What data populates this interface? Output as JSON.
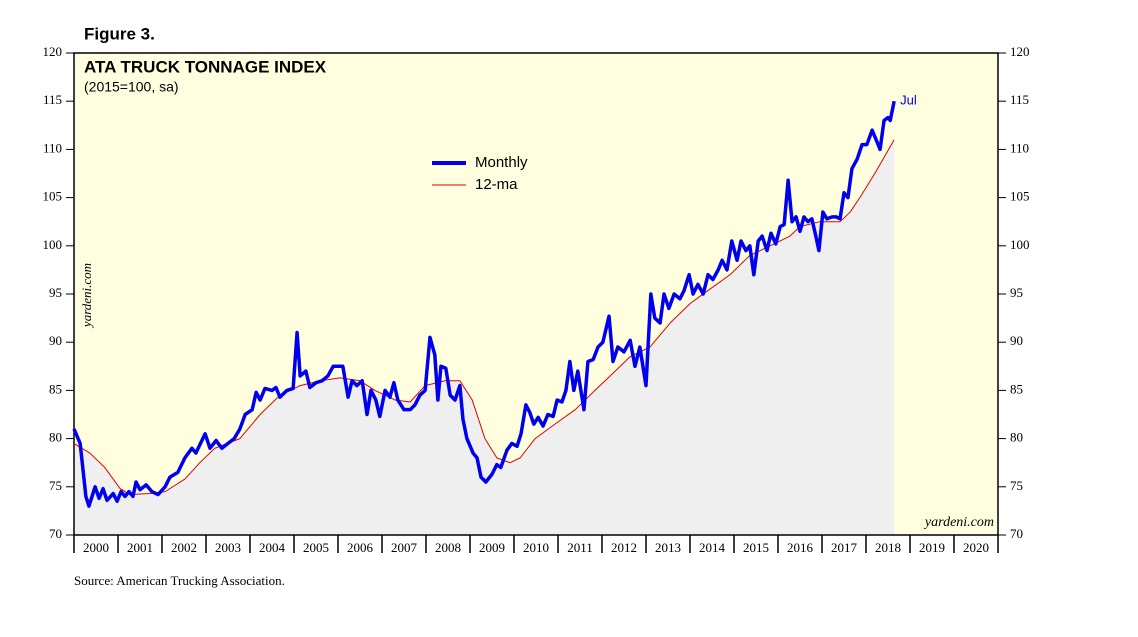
{
  "figure_label": "Figure 3.",
  "source": "Source: American Trucking Association.",
  "watermark": "yardeni.com",
  "chart_data": {
    "type": "line",
    "title": "ATA TRUCK TONNAGE INDEX",
    "subtitle": "(2015=100, sa)",
    "annotation": "Jul",
    "xlim": [
      2000,
      2021
    ],
    "xticks": [
      2000,
      2001,
      2002,
      2003,
      2004,
      2005,
      2006,
      2007,
      2008,
      2009,
      2010,
      2011,
      2012,
      2013,
      2014,
      2015,
      2016,
      2017,
      2018,
      2019,
      2020
    ],
    "ylim": [
      70,
      120
    ],
    "yticks": [
      70,
      75,
      80,
      85,
      90,
      95,
      100,
      105,
      110,
      115,
      120
    ],
    "background": "#ffffe0",
    "area_color": "#efefef",
    "series": [
      {
        "name": "Monthly",
        "color": "#0000ee",
        "x": [
          2000.0,
          2000.14,
          2000.27,
          2000.34,
          2000.48,
          2000.57,
          2000.66,
          2000.75,
          2000.89,
          2000.98,
          2001.07,
          2001.16,
          2001.25,
          2001.34,
          2001.41,
          2001.5,
          2001.64,
          2001.77,
          2001.91,
          2002.07,
          2002.18,
          2002.36,
          2002.52,
          2002.68,
          2002.77,
          2002.98,
          2003.09,
          2003.23,
          2003.36,
          2003.5,
          2003.64,
          2003.77,
          2003.89,
          2004.05,
          2004.14,
          2004.23,
          2004.34,
          2004.5,
          2004.59,
          2004.68,
          2004.84,
          2004.98,
          2005.07,
          2005.14,
          2005.27,
          2005.36,
          2005.5,
          2005.64,
          2005.77,
          2005.89,
          2006.11,
          2006.23,
          2006.32,
          2006.43,
          2006.55,
          2006.66,
          2006.75,
          2006.86,
          2006.95,
          2007.07,
          2007.18,
          2007.27,
          2007.36,
          2007.5,
          2007.64,
          2007.75,
          2007.86,
          2007.98,
          2008.09,
          2008.2,
          2008.27,
          2008.34,
          2008.45,
          2008.55,
          2008.66,
          2008.77,
          2008.84,
          2008.93,
          2009.07,
          2009.16,
          2009.25,
          2009.36,
          2009.5,
          2009.61,
          2009.7,
          2009.84,
          2009.95,
          2010.07,
          2010.16,
          2010.27,
          2010.36,
          2010.45,
          2010.55,
          2010.66,
          2010.77,
          2010.89,
          2010.98,
          2011.09,
          2011.18,
          2011.27,
          2011.36,
          2011.45,
          2011.59,
          2011.68,
          2011.8,
          2011.91,
          2012.02,
          2012.16,
          2012.25,
          2012.36,
          2012.5,
          2012.64,
          2012.75,
          2012.86,
          2013.0,
          2013.11,
          2013.2,
          2013.32,
          2013.41,
          2013.52,
          2013.64,
          2013.77,
          2013.86,
          2013.98,
          2014.07,
          2014.18,
          2014.3,
          2014.41,
          2014.52,
          2014.64,
          2014.73,
          2014.84,
          2014.95,
          2015.07,
          2015.16,
          2015.27,
          2015.36,
          2015.45,
          2015.55,
          2015.64,
          2015.75,
          2015.84,
          2015.95,
          2016.05,
          2016.14,
          2016.23,
          2016.32,
          2016.41,
          2016.5,
          2016.59,
          2016.68,
          2016.77,
          2016.86,
          2016.93,
          2017.02,
          2017.11,
          2017.23,
          2017.32,
          2017.41,
          2017.5,
          2017.59,
          2017.68,
          2017.8,
          2017.91,
          2018.02,
          2018.14,
          2018.23,
          2018.32,
          2018.41,
          2018.5,
          2018.55,
          2018.64
        ],
        "values": [
          81,
          79.5,
          74,
          73,
          75,
          73.8,
          74.8,
          73.6,
          74.3,
          73.5,
          74.5,
          74,
          74.5,
          74,
          75.5,
          74.7,
          75.2,
          74.5,
          74.2,
          75,
          76,
          76.5,
          78,
          79,
          78.5,
          80.5,
          79,
          79.8,
          79,
          79.5,
          80,
          81,
          82.5,
          83,
          84.8,
          84,
          85.2,
          85,
          85.3,
          84.3,
          85,
          85.2,
          91,
          86.5,
          87,
          85.3,
          85.8,
          86,
          86.5,
          87.5,
          87.5,
          84.3,
          86,
          85.5,
          86,
          82.5,
          85,
          84,
          82.3,
          85,
          84.3,
          85.8,
          84,
          83,
          83,
          83.5,
          84.5,
          85,
          90.5,
          88.7,
          84,
          87.5,
          87.3,
          84.5,
          84,
          85.5,
          82,
          80,
          78.5,
          78,
          76,
          75.5,
          76.3,
          77.3,
          77,
          78.8,
          79.5,
          79.2,
          80.5,
          83.5,
          82.7,
          81.5,
          82.2,
          81.3,
          82.5,
          82.3,
          84,
          83.8,
          85,
          88,
          85,
          87,
          83,
          88,
          88.2,
          89.5,
          90,
          92.7,
          88,
          89.5,
          89,
          90.2,
          87.5,
          89.5,
          85.5,
          95,
          92.5,
          92,
          95,
          93.5,
          95,
          94.5,
          95.3,
          97,
          95,
          96,
          95,
          97,
          96.5,
          97.5,
          98.5,
          97.5,
          100.5,
          98.5,
          100.5,
          99.5,
          100,
          97,
          100.5,
          101,
          99.5,
          101.3,
          100.2,
          102,
          102.2,
          106.8,
          102.5,
          103,
          101.5,
          103,
          102.5,
          102.8,
          101,
          99.5,
          103.5,
          102.8,
          103,
          103,
          102.8,
          105.5,
          105,
          108,
          109,
          110.5,
          110.5,
          112,
          111,
          110,
          113,
          113.3,
          113,
          115
        ]
      },
      {
        "name": "12-ma",
        "color": "#e00000",
        "x": [
          2000.0,
          2000.36,
          2000.7,
          2001.05,
          2001.27,
          2001.73,
          2002.07,
          2002.52,
          2002.86,
          2003.2,
          2003.77,
          2004.23,
          2004.68,
          2005.14,
          2005.59,
          2006.05,
          2006.5,
          2006.84,
          2007.3,
          2007.64,
          2007.98,
          2008.43,
          2008.77,
          2009.05,
          2009.34,
          2009.61,
          2009.91,
          2010.14,
          2010.48,
          2010.93,
          2011.39,
          2011.84,
          2012.3,
          2012.64,
          2013.09,
          2013.55,
          2014.0,
          2014.45,
          2014.91,
          2015.36,
          2015.82,
          2016.27,
          2016.5,
          2016.95,
          2017.41,
          2017.64,
          2017.86,
          2018.2,
          2018.64
        ],
        "values": [
          79.5,
          78.5,
          77,
          74.8,
          74.2,
          74.3,
          74.5,
          75.8,
          77.5,
          79,
          80,
          82.5,
          84.5,
          85.5,
          86,
          86.3,
          86,
          85,
          84,
          83.8,
          85.5,
          86,
          86,
          84,
          80,
          78,
          77.5,
          78,
          80,
          81.5,
          83,
          85,
          87,
          88.5,
          89.5,
          92,
          94,
          95.5,
          97,
          99,
          100,
          101,
          102,
          102.5,
          102.5,
          103.5,
          105,
          107.5,
          111
        ]
      }
    ]
  }
}
